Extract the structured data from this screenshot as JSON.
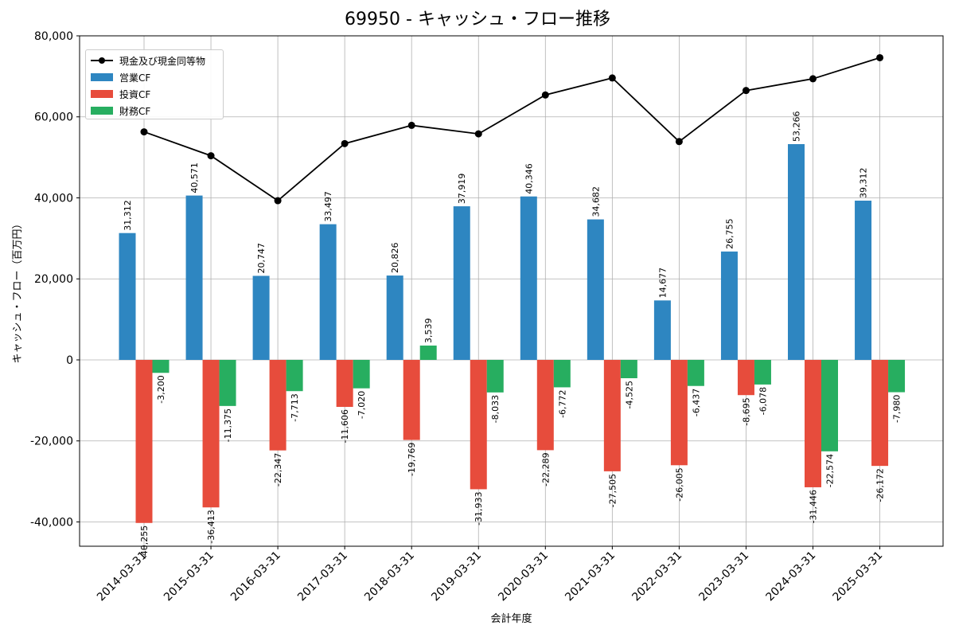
{
  "chart_data": {
    "type": "bar",
    "title": "69950 - キャッシュ・フロー推移",
    "xlabel": "会計年度",
    "ylabel": "キャッシュ・フロー（百万円）",
    "ylim": [
      -46000,
      80000
    ],
    "yticks": [
      -40000,
      -20000,
      0,
      20000,
      40000,
      60000,
      80000
    ],
    "ytick_labels": [
      "-40,000",
      "-20,000",
      "0",
      "20,000",
      "40,000",
      "60,000",
      "80,000"
    ],
    "grid": true,
    "legend_position": "top-left",
    "categories": [
      "2014-03-31",
      "2015-03-31",
      "2016-03-31",
      "2017-03-31",
      "2018-03-31",
      "2019-03-31",
      "2020-03-31",
      "2021-03-31",
      "2022-03-31",
      "2023-03-31",
      "2024-03-31",
      "2025-03-31"
    ],
    "series": [
      {
        "name": "営業CF",
        "kind": "bar",
        "color": "#2e86c1",
        "values": [
          31312,
          40571,
          20747,
          33497,
          20826,
          37919,
          40346,
          34682,
          14677,
          26755,
          53266,
          39312
        ],
        "labels": [
          "31,312",
          "40,571",
          "20,747",
          "33,497",
          "20,826",
          "37,919",
          "40,346",
          "34,682",
          "14,677",
          "26,755",
          "53,266",
          "39,312"
        ]
      },
      {
        "name": "投資CF",
        "kind": "bar",
        "color": "#e74c3c",
        "values": [
          -40255,
          -36413,
          -22347,
          -11606,
          -19769,
          -31933,
          -22289,
          -27505,
          -26005,
          -8695,
          -31446,
          -26172
        ],
        "labels": [
          "-40,255",
          "-36,413",
          "-22,347",
          "-11,606",
          "-19,769",
          "-31,933",
          "-22,289",
          "-27,505",
          "-26,005",
          "-8,695",
          "-31,446",
          "-26,172"
        ]
      },
      {
        "name": "財務CF",
        "kind": "bar",
        "color": "#27ae60",
        "values": [
          -3200,
          -11375,
          -7713,
          -7020,
          3539,
          -8033,
          -6772,
          -4525,
          -6437,
          -6078,
          -22574,
          -7980
        ],
        "labels": [
          "-3,200",
          "-11,375",
          "-7,713",
          "-7,020",
          "3,539",
          "-8,033",
          "-6,772",
          "-4,525",
          "-6,437",
          "-6,078",
          "-22,574",
          "-7,980"
        ]
      },
      {
        "name": "現金及び現金同等物",
        "kind": "line",
        "color": "#000000",
        "values": [
          56300,
          50400,
          39300,
          53400,
          57900,
          55800,
          65400,
          69600,
          53900,
          66500,
          69400,
          74600
        ]
      }
    ]
  }
}
